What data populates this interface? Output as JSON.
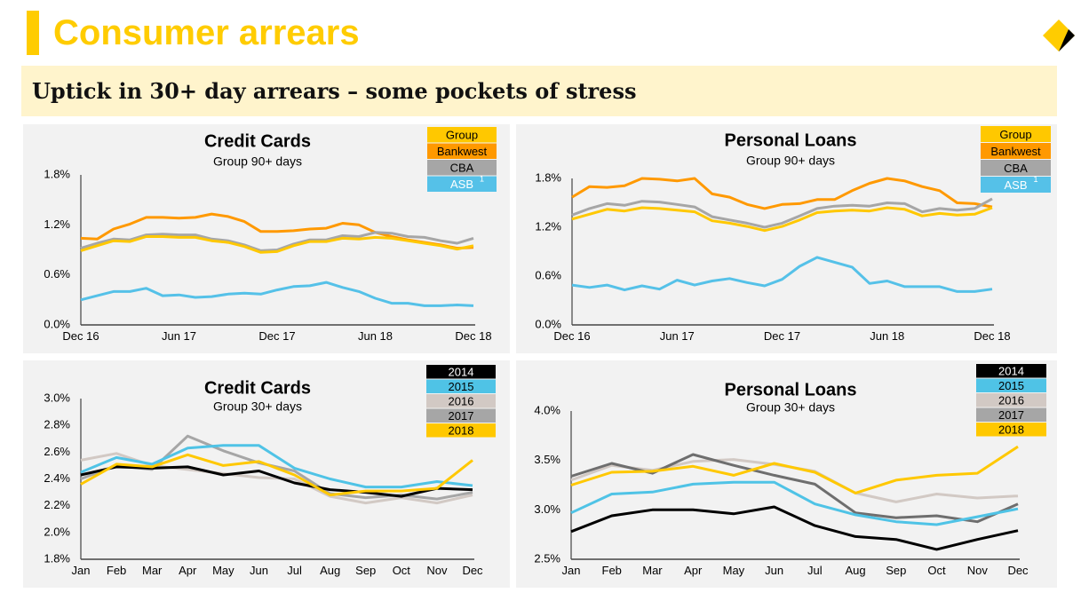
{
  "header": {
    "title": "Consumer arrears",
    "banner": "Uptick in 30+ day arrears – some pockets of stress",
    "logo_icon": "diamond-logo-icon"
  },
  "colors": {
    "brand_yellow": "#FFCC00",
    "banner_bg": "#FFF4CC",
    "panel_bg": "#F2F2F2",
    "Group": "#FFC800",
    "Bankwest": "#FF9900",
    "CBA": "#A6A6A6",
    "ASB": "#55C1E8",
    "2014": "#000000",
    "2015": "#4FC3E6",
    "2016": "#D2C9C4",
    "2017": "#A6A6A6",
    "2017_dark": "#6E6E6E",
    "2018": "#FFC800"
  },
  "chart_data": [
    {
      "id": "cc90",
      "type": "line",
      "title": "Credit Cards",
      "subtitle": "Group 90+ days",
      "xlabel": "",
      "ylabel": "",
      "ylim": [
        0.0,
        1.8
      ],
      "yticks": [
        "0.0%",
        "0.6%",
        "1.2%",
        "1.8%"
      ],
      "ytick_values": [
        0.0,
        0.6,
        1.2,
        1.8
      ],
      "xticks": [
        "Dec 16",
        "Jun 17",
        "Dec 17",
        "Jun 18",
        "Dec 18"
      ],
      "xtick_index": [
        0,
        6,
        12,
        18,
        24
      ],
      "n_points": 25,
      "legend": [
        {
          "name": "Group",
          "bg": "#FFC800",
          "fg": "#000000",
          "sup": ""
        },
        {
          "name": "Bankwest",
          "bg": "#FF9900",
          "fg": "#000000",
          "sup": ""
        },
        {
          "name": "CBA",
          "bg": "#A6A6A6",
          "fg": "#000000",
          "sup": ""
        },
        {
          "name": "ASB",
          "bg": "#55C1E8",
          "fg": "#FFFFFF",
          "sup": "1"
        }
      ],
      "legend_position": "top-right",
      "series": [
        {
          "name": "Bankwest",
          "color": "#FF9900",
          "values": [
            1.04,
            1.03,
            1.15,
            1.21,
            1.29,
            1.29,
            1.28,
            1.29,
            1.33,
            1.3,
            1.24,
            1.12,
            1.12,
            1.13,
            1.15,
            1.16,
            1.22,
            1.2,
            1.11,
            1.06,
            1.02,
            0.99,
            0.96,
            0.92,
            0.93
          ]
        },
        {
          "name": "CBA",
          "color": "#A6A6A6",
          "values": [
            0.92,
            0.98,
            1.03,
            1.02,
            1.08,
            1.09,
            1.08,
            1.08,
            1.03,
            1.01,
            0.96,
            0.89,
            0.9,
            0.97,
            1.02,
            1.02,
            1.07,
            1.06,
            1.11,
            1.1,
            1.06,
            1.05,
            1.01,
            0.98,
            1.04
          ]
        },
        {
          "name": "Group",
          "color": "#FFC800",
          "values": [
            0.89,
            0.95,
            1.01,
            1.0,
            1.06,
            1.06,
            1.05,
            1.05,
            1.01,
            0.99,
            0.94,
            0.87,
            0.88,
            0.95,
            1.0,
            1.0,
            1.04,
            1.03,
            1.05,
            1.04,
            1.01,
            0.98,
            0.95,
            0.91,
            0.95
          ]
        },
        {
          "name": "ASB",
          "color": "#55C1E8",
          "values": [
            0.3,
            0.35,
            0.4,
            0.4,
            0.44,
            0.35,
            0.36,
            0.33,
            0.34,
            0.37,
            0.38,
            0.37,
            0.42,
            0.46,
            0.47,
            0.51,
            0.45,
            0.4,
            0.32,
            0.26,
            0.26,
            0.23,
            0.23,
            0.24,
            0.23
          ]
        }
      ]
    },
    {
      "id": "pl90",
      "type": "line",
      "title": "Personal Loans",
      "subtitle": "Group 90+ days",
      "xlabel": "",
      "ylabel": "",
      "ylim": [
        0.0,
        1.8
      ],
      "yticks": [
        "0.0%",
        "0.6%",
        "1.2%",
        "1.8%"
      ],
      "ytick_values": [
        0.0,
        0.6,
        1.2,
        1.8
      ],
      "xticks": [
        "Dec 16",
        "Jun 17",
        "Dec 17",
        "Jun 18",
        "Dec 18"
      ],
      "xtick_index": [
        0,
        6,
        12,
        18,
        24
      ],
      "n_points": 25,
      "legend": [
        {
          "name": "Group",
          "bg": "#FFC800",
          "fg": "#000000",
          "sup": ""
        },
        {
          "name": "Bankwest",
          "bg": "#FF9900",
          "fg": "#000000",
          "sup": ""
        },
        {
          "name": "CBA",
          "bg": "#A6A6A6",
          "fg": "#000000",
          "sup": ""
        },
        {
          "name": "ASB",
          "bg": "#55C1E8",
          "fg": "#FFFFFF",
          "sup": "1"
        }
      ],
      "legend_position": "top-right",
      "series": [
        {
          "name": "Bankwest",
          "color": "#FF9900",
          "values": [
            1.57,
            1.7,
            1.69,
            1.71,
            1.8,
            1.79,
            1.77,
            1.8,
            1.61,
            1.57,
            1.48,
            1.43,
            1.48,
            1.49,
            1.54,
            1.54,
            1.65,
            1.74,
            1.8,
            1.77,
            1.7,
            1.65,
            1.5,
            1.49,
            1.45
          ]
        },
        {
          "name": "CBA",
          "color": "#A6A6A6",
          "values": [
            1.35,
            1.43,
            1.49,
            1.47,
            1.52,
            1.51,
            1.48,
            1.45,
            1.33,
            1.29,
            1.25,
            1.2,
            1.25,
            1.34,
            1.43,
            1.46,
            1.47,
            1.46,
            1.5,
            1.49,
            1.39,
            1.43,
            1.41,
            1.43,
            1.55
          ]
        },
        {
          "name": "Group",
          "color": "#FFC800",
          "values": [
            1.3,
            1.36,
            1.42,
            1.4,
            1.44,
            1.43,
            1.41,
            1.39,
            1.28,
            1.25,
            1.21,
            1.16,
            1.21,
            1.29,
            1.38,
            1.4,
            1.41,
            1.4,
            1.44,
            1.42,
            1.34,
            1.37,
            1.35,
            1.36,
            1.44
          ]
        },
        {
          "name": "ASB",
          "color": "#55C1E8",
          "values": [
            0.49,
            0.46,
            0.49,
            0.43,
            0.48,
            0.44,
            0.55,
            0.49,
            0.54,
            0.57,
            0.52,
            0.48,
            0.56,
            0.72,
            0.83,
            0.77,
            0.71,
            0.51,
            0.54,
            0.47,
            0.47,
            0.47,
            0.41,
            0.41,
            0.44
          ]
        }
      ]
    },
    {
      "id": "cc30",
      "type": "line",
      "title": "Credit Cards",
      "subtitle": "Group 30+ days",
      "xlabel": "",
      "ylabel": "",
      "ylim": [
        1.8,
        3.0
      ],
      "yticks": [
        "1.8%",
        "2.0%",
        "2.2%",
        "2.4%",
        "2.6%",
        "2.8%",
        "3.0%"
      ],
      "ytick_values": [
        1.8,
        2.0,
        2.2,
        2.4,
        2.6,
        2.8,
        3.0
      ],
      "categories": [
        "Jan",
        "Feb",
        "Mar",
        "Apr",
        "May",
        "Jun",
        "Jul",
        "Aug",
        "Sep",
        "Oct",
        "Nov",
        "Dec"
      ],
      "legend": [
        {
          "name": "2014",
          "bg": "#000000",
          "fg": "#FFFFFF"
        },
        {
          "name": "2015",
          "bg": "#4FC3E6",
          "fg": "#000000"
        },
        {
          "name": "2016",
          "bg": "#D2C9C4",
          "fg": "#000000"
        },
        {
          "name": "2017",
          "bg": "#A6A6A6",
          "fg": "#000000"
        },
        {
          "name": "2018",
          "bg": "#FFC800",
          "fg": "#000000"
        }
      ],
      "legend_position": "top-right",
      "series": [
        {
          "name": "2016",
          "color": "#D2C9C4",
          "values": [
            2.54,
            2.59,
            2.5,
            2.47,
            2.44,
            2.41,
            2.4,
            2.27,
            2.22,
            2.26,
            2.22,
            2.28
          ]
        },
        {
          "name": "2017",
          "color": "#A6A6A6",
          "values": [
            2.4,
            2.5,
            2.47,
            2.72,
            2.61,
            2.52,
            2.46,
            2.29,
            2.26,
            2.28,
            2.25,
            2.3
          ]
        },
        {
          "name": "2014",
          "color": "#000000",
          "values": [
            2.43,
            2.49,
            2.48,
            2.49,
            2.43,
            2.46,
            2.37,
            2.32,
            2.3,
            2.27,
            2.33,
            2.32
          ]
        },
        {
          "name": "2015",
          "color": "#4FC3E6",
          "values": [
            2.45,
            2.56,
            2.51,
            2.63,
            2.65,
            2.65,
            2.48,
            2.4,
            2.34,
            2.34,
            2.38,
            2.35
          ]
        },
        {
          "name": "2018",
          "color": "#FFC800",
          "values": [
            2.36,
            2.51,
            2.49,
            2.58,
            2.5,
            2.53,
            2.43,
            2.28,
            2.31,
            2.31,
            2.33,
            2.54
          ]
        }
      ]
    },
    {
      "id": "pl30",
      "type": "line",
      "title": "Personal Loans",
      "subtitle": "Group 30+ days",
      "xlabel": "",
      "ylabel": "",
      "ylim": [
        2.5,
        4.0
      ],
      "yticks": [
        "2.5%",
        "3.0%",
        "3.5%",
        "4.0%"
      ],
      "ytick_values": [
        2.5,
        3.0,
        3.5,
        4.0
      ],
      "categories": [
        "Jan",
        "Feb",
        "Mar",
        "Apr",
        "May",
        "Jun",
        "Jul",
        "Aug",
        "Sep",
        "Oct",
        "Nov",
        "Dec"
      ],
      "legend": [
        {
          "name": "2014",
          "bg": "#000000",
          "fg": "#FFFFFF"
        },
        {
          "name": "2015",
          "bg": "#4FC3E6",
          "fg": "#000000"
        },
        {
          "name": "2016",
          "bg": "#D2C9C4",
          "fg": "#000000"
        },
        {
          "name": "2017",
          "bg": "#A6A6A6",
          "fg": "#000000"
        },
        {
          "name": "2018",
          "bg": "#FFC800",
          "fg": "#000000"
        }
      ],
      "legend_position": "top-right",
      "series": [
        {
          "name": "2016",
          "color": "#D2C9C4",
          "values": [
            3.3,
            3.45,
            3.4,
            3.49,
            3.51,
            3.46,
            3.39,
            3.17,
            3.08,
            3.16,
            3.12,
            3.14
          ]
        },
        {
          "name": "2017",
          "color": "#6E6E6E",
          "values": [
            3.34,
            3.47,
            3.37,
            3.56,
            3.45,
            3.35,
            3.26,
            2.97,
            2.92,
            2.94,
            2.88,
            3.06
          ]
        },
        {
          "name": "2015",
          "color": "#4FC3E6",
          "values": [
            2.97,
            3.16,
            3.18,
            3.26,
            3.28,
            3.28,
            3.06,
            2.95,
            2.88,
            2.85,
            2.93,
            3.01
          ]
        },
        {
          "name": "2014",
          "color": "#000000",
          "values": [
            2.78,
            2.94,
            3.0,
            3.0,
            2.96,
            3.03,
            2.84,
            2.73,
            2.7,
            2.6,
            2.7,
            2.79
          ]
        },
        {
          "name": "2018",
          "color": "#FFC800",
          "values": [
            3.25,
            3.38,
            3.39,
            3.44,
            3.35,
            3.47,
            3.38,
            3.17,
            3.3,
            3.35,
            3.37,
            3.64
          ]
        }
      ]
    }
  ]
}
